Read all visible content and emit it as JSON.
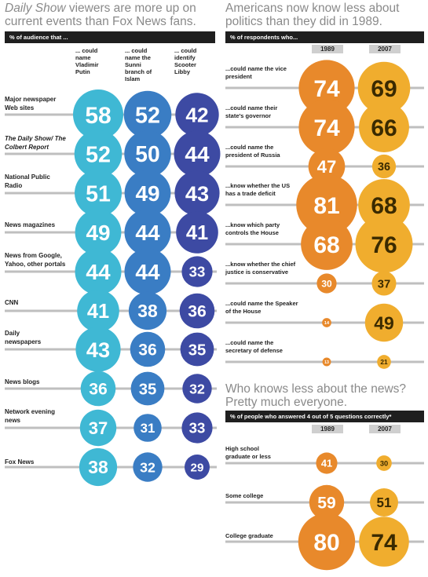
{
  "left": {
    "title_em": "Daily Show",
    "title_rest": " viewers are more up on current events than Fox News fans.",
    "header": "% of audience that ...",
    "col_heads": [
      "... could name Vladimir Putin",
      "... could name the Sunni branch of Islam",
      "... could identify Scooter Libby"
    ],
    "rows": [
      {
        "label": "Major newspaper Web sites",
        "italic": false
      },
      {
        "label": "The Daily Show/ The Colbert Report",
        "italic": true
      },
      {
        "label": "National Public Radio",
        "italic": false
      },
      {
        "label": "News magazines",
        "italic": false
      },
      {
        "label": "News from Google, Yahoo, other portals",
        "italic": false
      },
      {
        "label": "CNN",
        "italic": false
      },
      {
        "label": "Daily newspapers",
        "italic": false
      },
      {
        "label": "News blogs",
        "italic": false
      },
      {
        "label": "Network evening news",
        "italic": false
      },
      {
        "label": "Fox News",
        "italic": false
      }
    ]
  },
  "top_right": {
    "title": "Americans now know less about politics than they did in 1989.",
    "header": "% of respondents who...",
    "years": [
      "1989",
      "2007"
    ],
    "rows": [
      "...could name the vice president",
      "...could name their state's governor",
      "...could name the president of Russia",
      "...know whether the US has a trade deficit",
      "...know which party controls the House",
      "...know whether the chief justice is conservative",
      "...could name the Speaker of the House",
      "...could name the secretary of defense"
    ]
  },
  "bottom_right": {
    "title": "Who knows less about the news? Pretty much everyone.",
    "header": "% of people who answered 4 out of 5 questions correctly*",
    "years": [
      "1989",
      "2007"
    ],
    "rows": [
      "High school graduate or less",
      "Some college",
      "College graduate"
    ]
  },
  "colors": {
    "putin": "#3fb8d4",
    "sunni": "#3a7dc4",
    "libby": "#3d4aa3",
    "y1989": "#e8892b",
    "y2007": "#f0ad2e",
    "line": "#bfbfbf",
    "title": "#8a8a8a"
  },
  "chart_data": [
    {
      "type": "bubble",
      "title": "Daily Show viewers are more up on current events than Fox News fans.",
      "subtitle": "% of audience that ...",
      "categories": [
        "Major newspaper Web sites",
        "The Daily Show/ The Colbert Report",
        "National Public Radio",
        "News magazines",
        "News from Google, Yahoo, other portals",
        "CNN",
        "Daily newspapers",
        "News blogs",
        "Network evening news",
        "Fox News"
      ],
      "series": [
        {
          "name": "... could name Vladimir Putin",
          "values": [
            58,
            52,
            51,
            49,
            44,
            41,
            43,
            36,
            37,
            38
          ]
        },
        {
          "name": "... could name the Sunni branch of Islam",
          "values": [
            52,
            50,
            49,
            44,
            44,
            38,
            36,
            35,
            31,
            32
          ]
        },
        {
          "name": "... could identify Scooter Libby",
          "values": [
            42,
            44,
            43,
            41,
            33,
            36,
            35,
            32,
            33,
            29
          ]
        }
      ]
    },
    {
      "type": "bubble",
      "title": "Americans now know less about politics than they did in 1989.",
      "subtitle": "% of respondents who...",
      "categories": [
        "...could name the vice president",
        "...could name their state's governor",
        "...could name the president of Russia",
        "...know whether the US has a trade deficit",
        "...know which party controls the House",
        "...know whether the chief justice is conservative",
        "...could name the Speaker of the House",
        "...could name the secretary of defense"
      ],
      "series": [
        {
          "name": "1989",
          "values": [
            74,
            74,
            47,
            81,
            68,
            30,
            14,
            13
          ]
        },
        {
          "name": "2007",
          "values": [
            69,
            66,
            36,
            68,
            76,
            37,
            49,
            21
          ]
        }
      ]
    },
    {
      "type": "bubble",
      "title": "Who knows less about the news? Pretty much everyone.",
      "subtitle": "% of people who answered 4 out of 5 questions correctly*",
      "categories": [
        "High school graduate or less",
        "Some college",
        "College graduate"
      ],
      "series": [
        {
          "name": "1989",
          "values": [
            41,
            59,
            80
          ]
        },
        {
          "name": "2007",
          "values": [
            30,
            51,
            74
          ]
        }
      ]
    }
  ]
}
